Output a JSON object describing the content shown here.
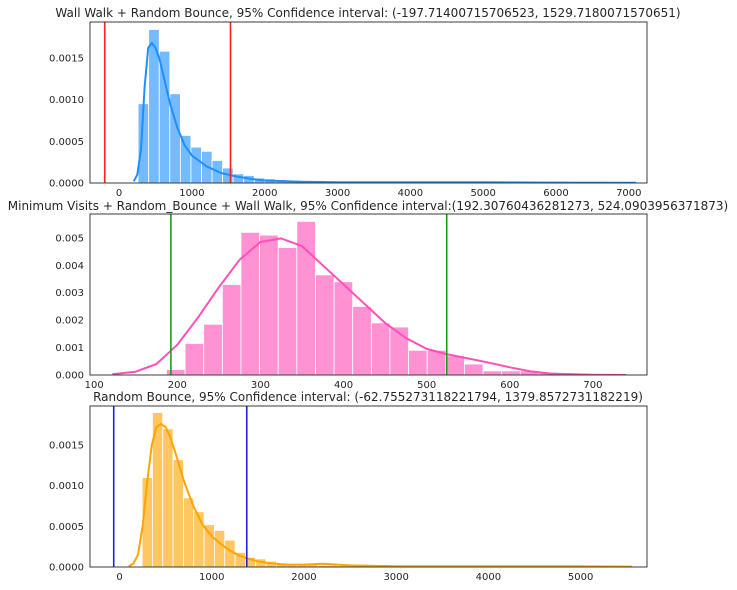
{
  "chart_data": [
    {
      "type": "bar",
      "title": "Wall Walk + Random Bounce, 95% Confidence interval: (-197.71400715706523, 1529.7180071570651)",
      "color": "#1f8fff",
      "xlim": [
        -400,
        7250
      ],
      "ylim": [
        0,
        0.00193
      ],
      "xticks": [
        0,
        1000,
        2000,
        3000,
        4000,
        5000,
        6000,
        7000
      ],
      "xtick_labels": [
        "0",
        "1000",
        "2000",
        "3000",
        "4000",
        "5000",
        "6000",
        "7000"
      ],
      "yticks": [
        0,
        0.0005,
        0.001,
        0.0015
      ],
      "ytick_labels": [
        "0.0000",
        "0.0005",
        "0.0010",
        "0.0015"
      ],
      "bin_start": 261,
      "bin_width": 145,
      "hist": [
        0.00095,
        0.00184,
        0.00158,
        0.00107,
        0.00057,
        0.00043,
        0.00038,
        0.00027,
        0.00018,
        0.00011,
        9e-05,
        6e-05,
        5e-05,
        4e-05,
        3e-05,
        2e-05,
        2e-05,
        2e-05,
        1e-05,
        1e-05,
        1e-05,
        1e-05,
        1e-05,
        1e-05,
        1e-05,
        1e-05,
        1e-05,
        5e-06,
        5e-06,
        5e-06,
        5e-06,
        5e-06,
        5e-06,
        5e-06,
        5e-06,
        5e-06,
        5e-06,
        5e-06,
        5e-06,
        5e-06,
        5e-06,
        5e-06,
        5e-06,
        5e-06,
        5e-06,
        5e-06,
        5e-06
      ],
      "kde": {
        "x": [
          200,
          250,
          300,
          350,
          400,
          450,
          500,
          550,
          600,
          700,
          800,
          900,
          1000,
          1200,
          1400,
          1600,
          1800,
          2000,
          2500,
          3000,
          3500,
          4000,
          4500,
          5000,
          6000,
          7100
        ],
        "y": [
          2e-05,
          0.0001,
          0.0004,
          0.00115,
          0.00162,
          0.00168,
          0.00162,
          0.0015,
          0.00132,
          0.00095,
          0.00066,
          0.00045,
          0.00033,
          0.0002,
          0.00012,
          8e-05,
          5e-05,
          3e-05,
          1.5e-05,
          1e-05,
          1e-05,
          1e-05,
          1e-05,
          1e-05,
          5e-06,
          2e-06
        ]
      },
      "ci": [
        -197.71400715706523,
        1529.7180071570651
      ],
      "ci_color": "#ff1e1e"
    },
    {
      "type": "bar",
      "title": "Minimum Visits + Random_Bounce + Wall Walk, 95% Confidence interval:(192.30760436281273, 524.0903956371873)",
      "color": "#ff4fb8",
      "xlim": [
        95,
        765
      ],
      "ylim": [
        0,
        0.00587
      ],
      "xticks": [
        100,
        200,
        300,
        400,
        500,
        600,
        700
      ],
      "xtick_labels": [
        "100",
        "200",
        "300",
        "400",
        "500",
        "600",
        "700"
      ],
      "yticks": [
        0,
        0.001,
        0.002,
        0.003,
        0.004,
        0.005
      ],
      "ytick_labels": [
        "0.000",
        "0.001",
        "0.002",
        "0.003",
        "0.004",
        "0.005"
      ],
      "bin_start": 187,
      "bin_width": 22.4,
      "hist": [
        0.0002,
        0.00115,
        0.00185,
        0.0033,
        0.0052,
        0.0051,
        0.00465,
        0.0056,
        0.00365,
        0.0034,
        0.0025,
        0.0019,
        0.00175,
        0.0009,
        0.0009,
        0.0007,
        0.0004,
        0.00015,
        0.00015,
        0.00015,
        0.0001
      ],
      "kde": {
        "x": [
          122,
          150,
          175,
          200,
          225,
          250,
          275,
          300,
          325,
          350,
          375,
          400,
          425,
          450,
          475,
          500,
          525,
          550,
          575,
          600,
          625,
          650,
          700,
          740
        ],
        "y": [
          3e-05,
          0.00012,
          0.0004,
          0.0011,
          0.0021,
          0.0032,
          0.0042,
          0.00485,
          0.00498,
          0.0047,
          0.004,
          0.0033,
          0.0026,
          0.0019,
          0.00135,
          0.00095,
          0.00075,
          0.0006,
          0.00045,
          0.00028,
          0.00013,
          5e-05,
          1e-05,
          0.0
        ]
      },
      "ci": [
        192.30760436281273,
        524.0903956371873
      ],
      "ci_color": "#1a9e1a"
    },
    {
      "type": "bar",
      "title": "Random Bounce, 95% Confidence interval: (-62.755273118221794, 1379.8572731182219)",
      "color": "#ffa500",
      "xlim": [
        -320,
        5720
      ],
      "ylim": [
        0,
        0.00198
      ],
      "xticks": [
        0,
        1000,
        2000,
        3000,
        4000,
        5000
      ],
      "xtick_labels": [
        "0",
        "1000",
        "2000",
        "3000",
        "4000",
        "5000"
      ],
      "yticks": [
        0,
        0.0005,
        0.001,
        0.0015
      ],
      "ytick_labels": [
        "0.0000",
        "0.0005",
        "0.0010",
        "0.0015"
      ],
      "bin_start": 245,
      "bin_width": 112,
      "hist": [
        0.0011,
        0.0019,
        0.0017,
        0.00132,
        0.00085,
        0.00068,
        0.00052,
        0.00045,
        0.00033,
        0.00018,
        0.00012,
        0.0001,
        7e-05,
        5e-05,
        4e-05,
        3e-05,
        3e-05,
        2e-05,
        2e-05,
        2e-05,
        1e-05,
        1e-05,
        1e-05,
        1e-05,
        1e-05,
        5e-06,
        5e-06,
        5e-06,
        5e-06,
        5e-06,
        5e-06,
        5e-06,
        5e-06,
        5e-06,
        5e-06,
        5e-06,
        5e-06,
        5e-06,
        5e-06,
        5e-06,
        5e-06,
        5e-06,
        5e-06,
        5e-06,
        5e-06,
        5e-06,
        5e-06
      ],
      "kde": {
        "x": [
          100,
          150,
          200,
          250,
          300,
          350,
          400,
          450,
          500,
          550,
          600,
          700,
          800,
          900,
          1000,
          1100,
          1200,
          1300,
          1400,
          1500,
          1600,
          1800,
          2000,
          2200,
          2500,
          3000,
          3500,
          4000,
          4500,
          5000,
          5560
        ],
        "y": [
          1e-05,
          4e-05,
          0.00015,
          0.0005,
          0.00105,
          0.0015,
          0.00172,
          0.00176,
          0.00172,
          0.0016,
          0.00143,
          0.00105,
          0.00075,
          0.00052,
          0.00038,
          0.00028,
          0.0002,
          0.00014,
          0.0001,
          7e-05,
          5e-05,
          3e-05,
          3e-05,
          4e-05,
          2e-05,
          1e-05,
          1e-05,
          1e-05,
          1e-05,
          1e-05,
          5e-06
        ]
      },
      "ci": [
        -62.755273118221794,
        1379.8572731182219
      ],
      "ci_color": "#2020e0"
    }
  ]
}
